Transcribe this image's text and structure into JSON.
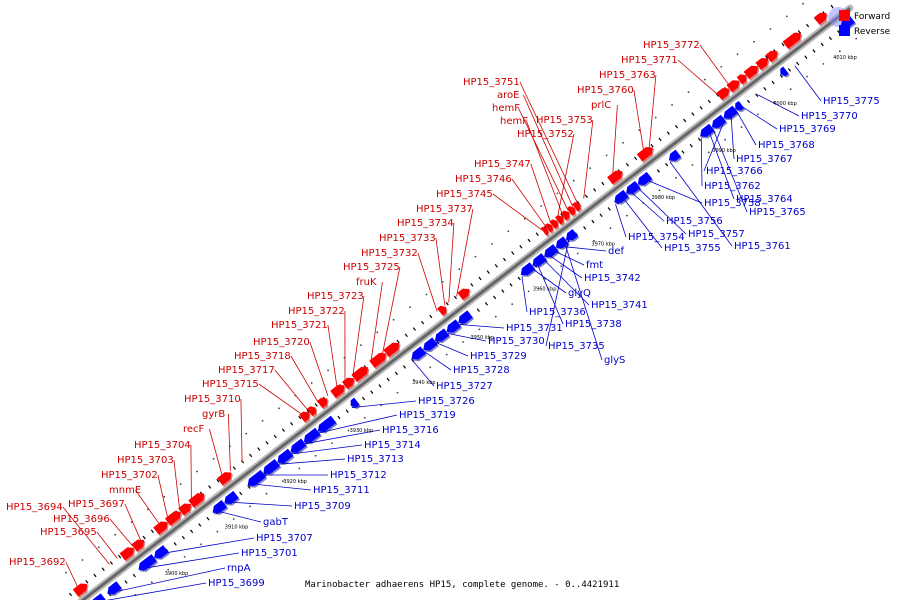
{
  "title": "Marinobacter adhaerens HP15, complete genome. - 0..4421911",
  "legend": [
    {
      "label": "Forward",
      "color": "#ff0000"
    },
    {
      "label": "Reverse",
      "color": "#0000ff"
    }
  ],
  "ticks": [
    "3900 kbp",
    "3910 kbp",
    "3920 kbp",
    "3930 kbp",
    "3940 kbp",
    "3950 kbp",
    "3960 kbp",
    "3970 kbp",
    "3980 kbp",
    "3990 kbp",
    "4000 kbp",
    "4010 kbp"
  ],
  "forward_labels": [
    "HP15_3692",
    "HP15_3694",
    "HP15_3695",
    "HP15_3696",
    "HP15_3697",
    "mnmE",
    "HP15_3702",
    "HP15_3703",
    "HP15_3704",
    "recF",
    "gyrB",
    "HP15_3710",
    "HP15_3715",
    "HP15_3717",
    "HP15_3718",
    "HP15_3720",
    "HP15_3721",
    "HP15_3722",
    "HP15_3723",
    "fruK",
    "HP15_3725",
    "HP15_3732",
    "HP15_3733",
    "HP15_3734",
    "HP15_3737",
    "HP15_3745",
    "HP15_3746",
    "HP15_3747",
    "HP15_3752",
    "hemF",
    "hemF",
    "aroE",
    "HP15_3751",
    "HP15_3753",
    "prlC",
    "HP15_3760",
    "HP15_3763",
    "HP15_3771",
    "HP15_3772"
  ],
  "reverse_labels": [
    "HP15_3699",
    "rnpA",
    "HP15_3701",
    "HP15_3707",
    "gabT",
    "HP15_3709",
    "HP15_3711",
    "HP15_3712",
    "HP15_3713",
    "HP15_3714",
    "HP15_3716",
    "HP15_3719",
    "HP15_3726",
    "HP15_3727",
    "HP15_3728",
    "HP15_3729",
    "HP15_3730",
    "HP15_3731",
    "HP15_3736",
    "glyQ",
    "HP15_3738",
    "HP15_3741",
    "HP15_3742",
    "fmt",
    "def",
    "glyS",
    "HP15_3735",
    "HP15_3754",
    "HP15_3755",
    "HP15_3756",
    "HP15_3757",
    "HP15_3758",
    "HP15_3761",
    "HP15_3762",
    "HP15_3764",
    "HP15_3765",
    "HP15_3766",
    "HP15_3767",
    "HP15_3768",
    "HP15_3769",
    "HP15_3770",
    "HP15_3775"
  ]
}
